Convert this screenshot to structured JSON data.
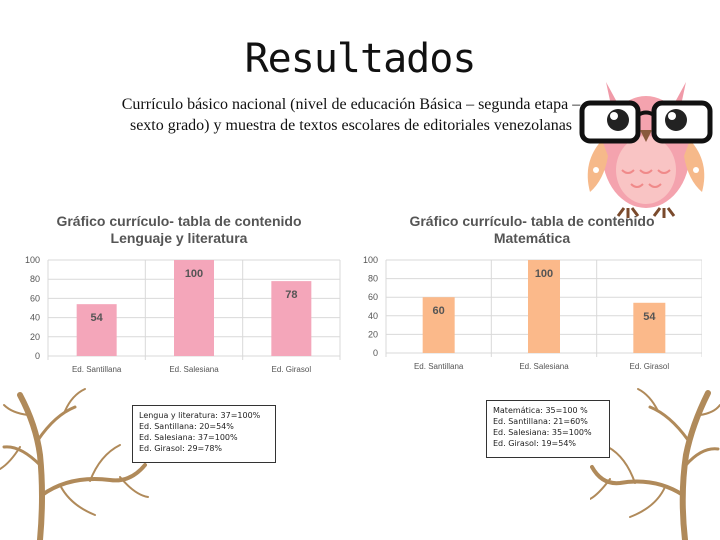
{
  "title": "Resultados",
  "subtitle": "Currículo básico nacional (nivel de educación Básica – segunda etapa – sexto grado) y muestra de textos escolares de editoriales venezolanas",
  "colors": {
    "pink": "#f4a6ba",
    "orange": "#fbb98a",
    "grid": "#d9d9d9",
    "text": "#555555"
  },
  "notes": {
    "left": [
      "Lengua y literatura: 37=100%",
      "Ed. Santillana: 20=54%",
      "Ed. Salesiana: 37=100%",
      "Ed. Girasol: 29=78%"
    ],
    "right": [
      "Matemática: 35=100 %",
      "Ed. Santillana: 21=60%",
      "Ed. Salesiana: 35=100%",
      "Ed. Girasol: 19=54%"
    ]
  },
  "decorations": [
    "owl-with-glasses-icon",
    "bare-tree-icon"
  ],
  "chart_data": [
    {
      "type": "bar",
      "title": [
        "Gráfico currículo- tabla de contenido",
        "Lenguaje y literatura"
      ],
      "categories": [
        "Ed. Santillana",
        "Ed. Salesiana",
        "Ed. Girasol"
      ],
      "values": [
        54,
        100,
        78
      ],
      "ylim": [
        0,
        100
      ],
      "yticks": [
        0,
        20,
        40,
        60,
        80,
        100
      ],
      "grid": true,
      "color": "#f4a6ba"
    },
    {
      "type": "bar",
      "title": [
        "Gráfico currículo- tabla de contenido",
        "Matemática"
      ],
      "categories": [
        "Ed. Santillana",
        "Ed. Salesiana",
        "Ed. Girasol"
      ],
      "values": [
        60,
        100,
        54
      ],
      "ylim": [
        0,
        100
      ],
      "yticks": [
        0,
        20,
        40,
        60,
        80,
        100
      ],
      "grid": true,
      "color": "#fbb98a"
    }
  ]
}
